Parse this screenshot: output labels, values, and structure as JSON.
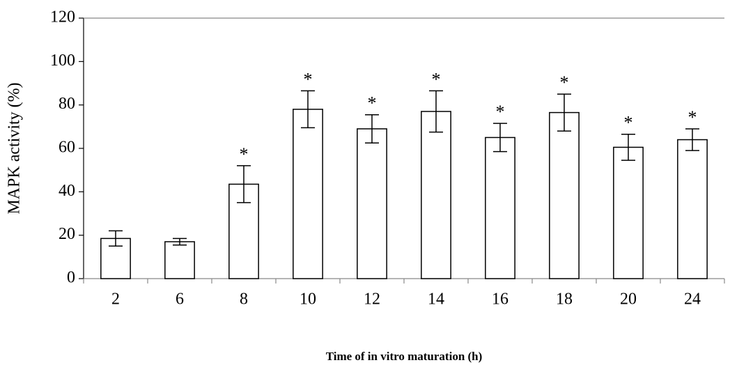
{
  "chart_data": {
    "type": "bar",
    "x_label": "Time of in vitro maturation (h)",
    "y_label": "MAPK activity (%)",
    "categories": [
      "2",
      "6",
      "8",
      "10",
      "12",
      "14",
      "16",
      "18",
      "20",
      "24"
    ],
    "values": [
      18.5,
      17,
      43.5,
      78,
      69,
      77,
      65,
      76.5,
      60.5,
      64
    ],
    "errors": [
      3.5,
      1.5,
      8.5,
      8.5,
      6.5,
      9.5,
      6.5,
      8.5,
      6,
      5
    ],
    "significance": [
      null,
      null,
      "*",
      "*",
      "*",
      "*",
      "*",
      "*",
      "*",
      "*"
    ],
    "color": "#ffffff",
    "ylim": [
      0,
      120
    ],
    "yticks": [
      0,
      20,
      40,
      60,
      80,
      100,
      120
    ],
    "grid": false
  }
}
